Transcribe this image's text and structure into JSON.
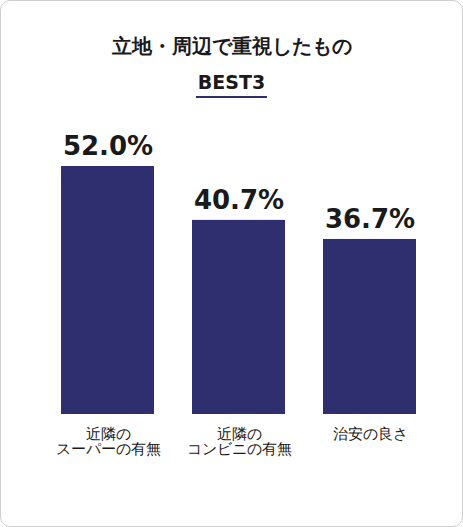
{
  "chart_data": {
    "type": "bar",
    "title": "立地・周辺で重視したもの",
    "subtitle": "BEST3",
    "categories": [
      "近隣の\nスーパーの有無",
      "近隣の\nコンビニの有無",
      "治安の良さ"
    ],
    "values": [
      52.0,
      40.7,
      36.7
    ],
    "value_labels": [
      "52.0%",
      "40.7%",
      "36.7%"
    ],
    "color": "#2f2e6e",
    "data_labels": true,
    "tick_labels": "x"
  }
}
